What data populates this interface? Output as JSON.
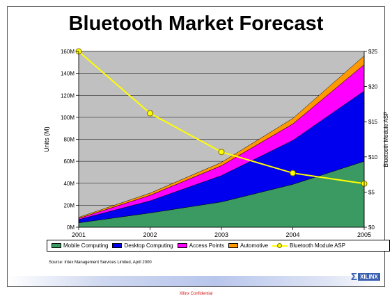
{
  "chart_data": {
    "type": "area",
    "title": "Bluetooth Market Forecast",
    "ylabel": "Units (M)",
    "y2label": "Bluetooth Module ASP",
    "categories": [
      "2001",
      "2002",
      "2003",
      "2004",
      "2005"
    ],
    "stacked": true,
    "series": [
      {
        "name": "Mobile Computing",
        "values": [
          4,
          13,
          23,
          39,
          60
        ],
        "color": "#3a9a62"
      },
      {
        "name": "Desktop Computing",
        "values": [
          3,
          11,
          24,
          40,
          64
        ],
        "color": "#0000ee"
      },
      {
        "name": "Access Points",
        "values": [
          1,
          5,
          9,
          15,
          24
        ],
        "color": "#ff00ff"
      },
      {
        "name": "Automotive",
        "values": [
          1,
          2,
          3,
          5,
          8
        ],
        "color": "#ff9900"
      }
    ],
    "line_series": {
      "name": "Bluetooth Module ASP",
      "axis": "right",
      "values": [
        25,
        16.2,
        10.7,
        7.7,
        6.2
      ],
      "color": "#ffff00"
    },
    "yticks": [
      "0M",
      "20M",
      "40M",
      "60M",
      "80M",
      "100M",
      "120M",
      "140M",
      "160M"
    ],
    "y2ticks": [
      "$0",
      "$5",
      "$10",
      "$15",
      "$20",
      "$25"
    ],
    "ylim": [
      0,
      160
    ],
    "y2lim": [
      0,
      25
    ],
    "grid": true,
    "legend_position": "bottom",
    "plot_background": "#c0c0c0"
  },
  "source_note": "Source: Intex Management Services Limited, April 2000",
  "footer": {
    "confidential": "Xilinx Confidential",
    "logo_text": "XILINX",
    "logo_mark": "Σ"
  }
}
